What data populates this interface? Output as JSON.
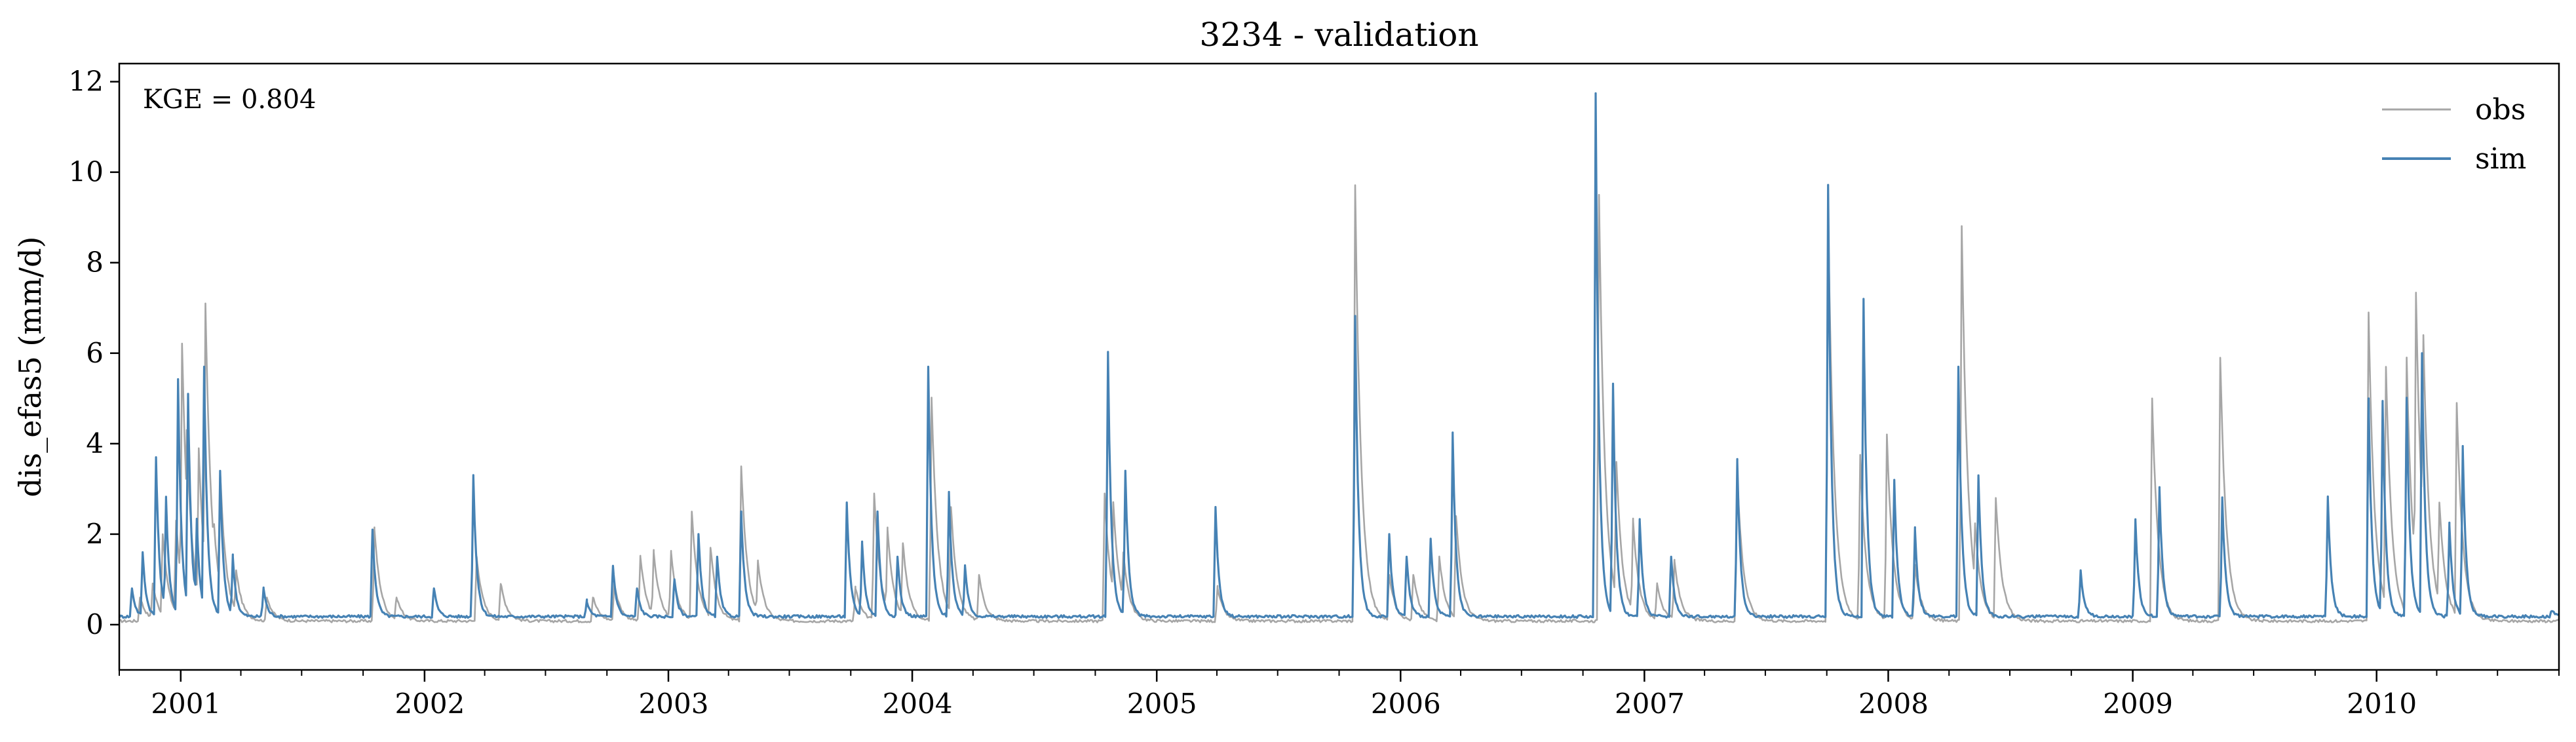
{
  "chart_data": {
    "type": "line",
    "title": "3234 - validation",
    "xlabel": "",
    "ylabel": "dis_efas5 (mm/d)",
    "annotation": "KGE = 0.804",
    "legend_position": "top-right",
    "grid": false,
    "x_range": [
      "2000-10-01",
      "2010-10-01"
    ],
    "ylim": [
      -1,
      12.4
    ],
    "y_ticks": [
      0,
      2,
      4,
      6,
      8,
      10,
      12
    ],
    "x_ticks": [
      "2001",
      "2002",
      "2003",
      "2004",
      "2005",
      "2006",
      "2007",
      "2008",
      "2009",
      "2010"
    ],
    "x_tick_dates": [
      "2001-01-01",
      "2002-01-01",
      "2003-01-01",
      "2004-01-01",
      "2005-01-01",
      "2006-01-01",
      "2007-01-01",
      "2008-01-01",
      "2009-01-01",
      "2010-01-01"
    ],
    "baseline": {
      "obs": 0.05,
      "sim": 0.15
    },
    "series": [
      {
        "name": "obs",
        "color": "#a6a6a6",
        "peaks": [
          [
            "2000-11-01",
            0.6
          ],
          [
            "2000-11-20",
            0.9
          ],
          [
            "2000-12-05",
            2.0
          ],
          [
            "2000-12-25",
            2.3
          ],
          [
            "2001-01-03",
            6.2
          ],
          [
            "2001-01-10",
            4.3
          ],
          [
            "2001-01-28",
            3.9
          ],
          [
            "2001-02-07",
            7.1
          ],
          [
            "2001-02-20",
            2.2
          ],
          [
            "2001-03-01",
            3.4
          ],
          [
            "2001-03-25",
            1.2
          ],
          [
            "2001-05-10",
            0.6
          ],
          [
            "2001-10-18",
            2.1
          ],
          [
            "2001-11-20",
            0.6
          ],
          [
            "2002-03-20",
            1.5
          ],
          [
            "2002-04-25",
            0.9
          ],
          [
            "2002-09-10",
            0.6
          ],
          [
            "2002-10-12",
            0.9
          ],
          [
            "2002-11-20",
            1.5
          ],
          [
            "2002-12-10",
            1.6
          ],
          [
            "2003-01-05",
            1.6
          ],
          [
            "2003-02-05",
            2.5
          ],
          [
            "2003-03-05",
            1.7
          ],
          [
            "2003-04-20",
            3.5
          ],
          [
            "2003-05-15",
            1.4
          ],
          [
            "2003-10-08",
            0.8
          ],
          [
            "2003-11-05",
            2.9
          ],
          [
            "2003-11-25",
            2.1
          ],
          [
            "2003-12-18",
            1.8
          ],
          [
            "2004-01-30",
            5.0
          ],
          [
            "2004-02-28",
            2.6
          ],
          [
            "2004-04-10",
            1.1
          ],
          [
            "2004-10-15",
            2.9
          ],
          [
            "2004-10-28",
            2.7
          ],
          [
            "2004-11-12",
            1.6
          ],
          [
            "2005-04-02",
            0.8
          ],
          [
            "2005-10-25",
            9.7
          ],
          [
            "2005-12-15",
            1.1
          ],
          [
            "2006-01-20",
            1.1
          ],
          [
            "2006-02-28",
            1.5
          ],
          [
            "2006-03-25",
            2.4
          ],
          [
            "2006-10-25",
            9.5
          ],
          [
            "2006-11-20",
            3.6
          ],
          [
            "2006-12-15",
            2.3
          ],
          [
            "2007-01-20",
            0.9
          ],
          [
            "2007-02-15",
            1.4
          ],
          [
            "2007-05-20",
            3.3
          ],
          [
            "2007-10-03",
            9.1
          ],
          [
            "2007-11-20",
            3.7
          ],
          [
            "2007-12-30",
            4.2
          ],
          [
            "2008-02-10",
            1.3
          ],
          [
            "2008-04-20",
            8.8
          ],
          [
            "2008-05-10",
            2.2
          ],
          [
            "2008-06-10",
            2.8
          ],
          [
            "2009-01-30",
            5.0
          ],
          [
            "2009-05-12",
            5.9
          ],
          [
            "2009-12-20",
            6.9
          ],
          [
            "2010-01-15",
            5.7
          ],
          [
            "2010-02-15",
            5.9
          ],
          [
            "2010-03-01",
            7.3
          ],
          [
            "2010-03-12",
            6.4
          ],
          [
            "2010-04-05",
            2.7
          ],
          [
            "2010-05-01",
            4.9
          ]
        ]
      },
      {
        "name": "sim",
        "color": "#4682b4",
        "peaks": [
          [
            "2000-10-20",
            0.8
          ],
          [
            "2000-11-05",
            1.6
          ],
          [
            "2000-11-25",
            3.7
          ],
          [
            "2000-12-10",
            2.8
          ],
          [
            "2000-12-28",
            5.4
          ],
          [
            "2001-01-12",
            5.1
          ],
          [
            "2001-01-25",
            2.3
          ],
          [
            "2001-02-05",
            5.7
          ],
          [
            "2001-03-01",
            3.4
          ],
          [
            "2001-03-20",
            1.5
          ],
          [
            "2001-05-05",
            0.8
          ],
          [
            "2001-10-15",
            2.1
          ],
          [
            "2002-01-15",
            0.8
          ],
          [
            "2002-03-15",
            3.3
          ],
          [
            "2002-09-01",
            0.5
          ],
          [
            "2002-10-10",
            1.3
          ],
          [
            "2002-11-15",
            0.8
          ],
          [
            "2003-01-10",
            1.0
          ],
          [
            "2003-02-15",
            2.0
          ],
          [
            "2003-03-15",
            1.5
          ],
          [
            "2003-04-20",
            2.5
          ],
          [
            "2003-09-25",
            2.7
          ],
          [
            "2003-10-18",
            1.8
          ],
          [
            "2003-11-10",
            2.5
          ],
          [
            "2003-12-10",
            1.5
          ],
          [
            "2004-01-25",
            5.7
          ],
          [
            "2004-02-25",
            2.9
          ],
          [
            "2004-03-20",
            1.3
          ],
          [
            "2004-10-20",
            6.0
          ],
          [
            "2004-11-15",
            3.4
          ],
          [
            "2005-03-30",
            2.6
          ],
          [
            "2005-10-25",
            6.8
          ],
          [
            "2005-12-15",
            2.0
          ],
          [
            "2006-01-10",
            1.5
          ],
          [
            "2006-02-15",
            1.9
          ],
          [
            "2006-03-20",
            4.2
          ],
          [
            "2006-10-20",
            11.7
          ],
          [
            "2006-11-15",
            5.3
          ],
          [
            "2006-12-25",
            2.3
          ],
          [
            "2007-02-10",
            1.5
          ],
          [
            "2007-05-20",
            3.6
          ],
          [
            "2007-10-03",
            9.7
          ],
          [
            "2007-11-25",
            7.2
          ],
          [
            "2008-01-10",
            3.2
          ],
          [
            "2008-02-10",
            2.1
          ],
          [
            "2008-04-15",
            5.7
          ],
          [
            "2008-05-15",
            3.3
          ],
          [
            "2008-10-15",
            1.2
          ],
          [
            "2009-01-05",
            2.3
          ],
          [
            "2009-02-10",
            3.0
          ],
          [
            "2009-05-15",
            2.8
          ],
          [
            "2009-10-20",
            2.8
          ],
          [
            "2009-12-20",
            5.0
          ],
          [
            "2010-01-10",
            4.9
          ],
          [
            "2010-02-15",
            5.0
          ],
          [
            "2010-03-10",
            6.0
          ],
          [
            "2010-04-20",
            2.2
          ],
          [
            "2010-05-10",
            3.9
          ],
          [
            "2010-09-20",
            0.3
          ]
        ]
      }
    ]
  }
}
